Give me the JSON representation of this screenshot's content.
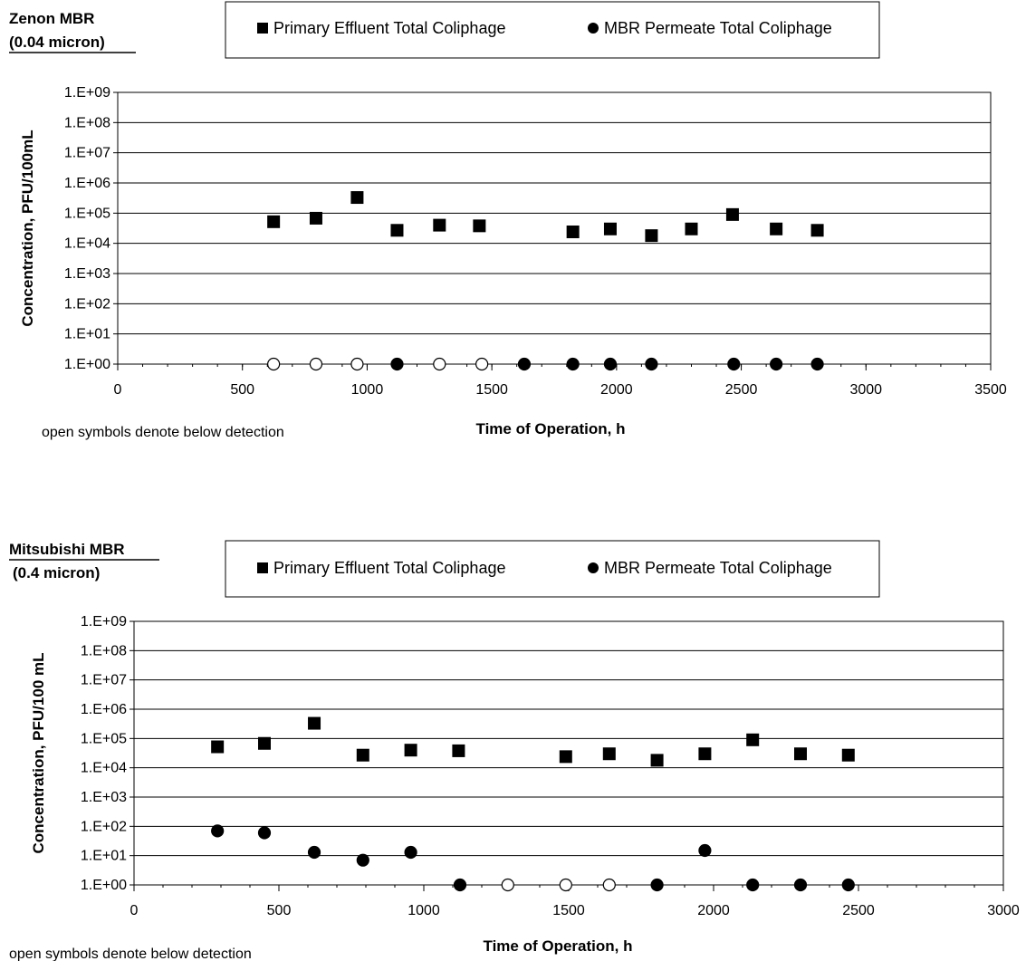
{
  "chart_data": [
    {
      "type": "scatter",
      "title": "Zenon MBR",
      "subtitle": "(0.04 micron)",
      "xlabel": "Time of Operation, h",
      "ylabel": "Concentration, PFU/100mL",
      "xlim": [
        0,
        3500
      ],
      "xticks": [
        0,
        500,
        1000,
        1500,
        2000,
        2500,
        3000,
        3500
      ],
      "ylim": [
        1,
        1000000000
      ],
      "yscale": "log",
      "yticks": [
        "1.E+00",
        "1.E+01",
        "1.E+02",
        "1.E+03",
        "1.E+04",
        "1.E+05",
        "1.E+06",
        "1.E+07",
        "1.E+08",
        "1.E+09"
      ],
      "grid": "horizontal",
      "legend": {
        "position": "top",
        "entries": [
          "Primary Effluent Total Coliphage",
          "MBR Permeate Total Coliphage"
        ]
      },
      "note": "open symbols denote below detection",
      "series": [
        {
          "name": "Primary Effluent Total Coliphage",
          "marker": "square",
          "x": [
            625,
            795,
            960,
            1120,
            1290,
            1450,
            1825,
            1975,
            2140,
            2300,
            2465,
            2640,
            2805
          ],
          "y": [
            52000,
            68000,
            330000,
            27000,
            40000,
            38000,
            24000,
            30000,
            18000,
            30000,
            90000,
            30000,
            27000
          ]
        },
        {
          "name": "MBR Permeate Total Coliphage",
          "marker": "circle",
          "x": [
            625,
            795,
            960,
            1120,
            1290,
            1460,
            1630,
            1825,
            1975,
            2140,
            2470,
            2640,
            2805
          ],
          "y": [
            1,
            1,
            1,
            1,
            1,
            1,
            1,
            1,
            1,
            1,
            1,
            1,
            1
          ],
          "below_detection": [
            true,
            true,
            true,
            false,
            true,
            true,
            false,
            false,
            false,
            false,
            false,
            false,
            false
          ]
        }
      ]
    },
    {
      "type": "scatter",
      "title": "Mitsubishi MBR",
      "subtitle": "(0.4 micron)",
      "xlabel": "Time of Operation, h",
      "ylabel": "Concentration, PFU/100 mL",
      "xlim": [
        0,
        3000
      ],
      "xticks": [
        0,
        500,
        1000,
        1500,
        2000,
        2500,
        3000
      ],
      "ylim": [
        1,
        1000000000
      ],
      "yscale": "log",
      "yticks": [
        "1.E+00",
        "1.E+01",
        "1.E+02",
        "1.E+03",
        "1.E+04",
        "1.E+05",
        "1.E+06",
        "1.E+07",
        "1.E+08",
        "1.E+09"
      ],
      "grid": "horizontal",
      "legend": {
        "position": "top",
        "entries": [
          "Primary Effluent Total Coliphage",
          "MBR Permeate Total Coliphage"
        ]
      },
      "note": "open symbols denote below detection",
      "series": [
        {
          "name": "Primary Effluent Total Coliphage",
          "marker": "square",
          "x": [
            288,
            450,
            622,
            790,
            955,
            1120,
            1490,
            1640,
            1805,
            1970,
            2135,
            2300,
            2465
          ],
          "y": [
            52000,
            68000,
            330000,
            27000,
            40000,
            38000,
            24000,
            30000,
            18000,
            30000,
            90000,
            30000,
            27000
          ]
        },
        {
          "name": "MBR Permeate Total Coliphage",
          "marker": "circle",
          "x": [
            288,
            450,
            622,
            790,
            955,
            1125,
            1290,
            1490,
            1640,
            1805,
            1970,
            2135,
            2300,
            2465
          ],
          "y": [
            70,
            60,
            13,
            7,
            13,
            1,
            1,
            1,
            1,
            1,
            15,
            1,
            1,
            1
          ],
          "below_detection": [
            false,
            false,
            false,
            false,
            false,
            false,
            true,
            true,
            true,
            false,
            false,
            false,
            false,
            false
          ]
        }
      ]
    }
  ]
}
